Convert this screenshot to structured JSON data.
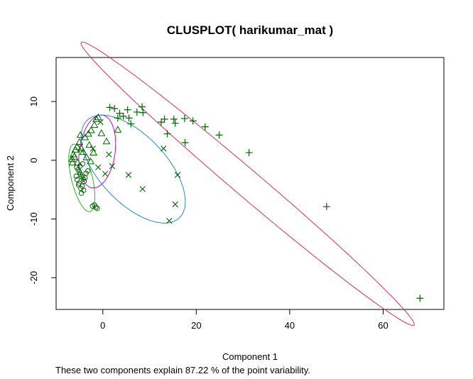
{
  "chart_data": {
    "type": "scatter",
    "title": "CLUSPLOT( harikumar_mat )",
    "xlabel": "Component 1",
    "ylabel": "Component 2",
    "subtitle": "These two components explain 87.22 % of the point variability.",
    "xlim": [
      -10,
      73
    ],
    "ylim": [
      -25.4,
      17.5
    ],
    "xticks": [
      0,
      20,
      40,
      60
    ],
    "yticks": [
      -20,
      -10,
      0,
      10
    ],
    "grid": false,
    "point_color": "#006400",
    "clusters": [
      {
        "marker": "circle",
        "ellipse_color": "#22bb22",
        "ellipse": {
          "center": [
            -4.5,
            -3.0
          ],
          "semi_major": 6.0,
          "semi_minor": 2.2,
          "angle_deg": -72
        },
        "points": [
          [
            -5.6,
            -1.2
          ],
          [
            -5.3,
            -1.6
          ],
          [
            -5.0,
            -2.0
          ],
          [
            -4.8,
            -2.4
          ],
          [
            -4.5,
            -2.8
          ],
          [
            -4.2,
            -3.2
          ],
          [
            -4.0,
            -3.6
          ],
          [
            -5.1,
            -3.9
          ],
          [
            -5.5,
            -3.3
          ],
          [
            -4.4,
            -4.4
          ],
          [
            -4.7,
            -4.8
          ],
          [
            -4.1,
            -5.1
          ],
          [
            -4.6,
            -5.6
          ],
          [
            -5.2,
            -4.2
          ],
          [
            -3.8,
            -3.0
          ],
          [
            -3.6,
            -2.2
          ],
          [
            -4.9,
            -1.0
          ],
          [
            -5.7,
            -2.7
          ],
          [
            -2.2,
            -7.8
          ],
          [
            -1.8,
            -7.6
          ],
          [
            -1.5,
            -8.0
          ],
          [
            -1.2,
            -8.2
          ],
          [
            -3.2,
            -1.8
          ],
          [
            -4.3,
            -0.6
          ]
        ]
      },
      {
        "marker": "triangle",
        "ellipse_color": "#cc00cc",
        "ellipse": {
          "center": [
            -1.2,
            1.5
          ],
          "semi_major": 6.3,
          "semi_minor": 3.8,
          "angle_deg": 78
        },
        "points": [
          [
            -6.6,
            0.2
          ],
          [
            -6.3,
            1.0
          ],
          [
            -5.9,
            1.8
          ],
          [
            -6.1,
            0.6
          ],
          [
            -5.5,
            2.3
          ],
          [
            -5.0,
            3.1
          ],
          [
            -4.6,
            2.0
          ],
          [
            -4.2,
            1.4
          ],
          [
            -3.8,
            3.9
          ],
          [
            -3.1,
            4.5
          ],
          [
            -2.5,
            5.1
          ],
          [
            -1.8,
            6.0
          ],
          [
            -1.4,
            7.0
          ],
          [
            -1.0,
            7.3
          ],
          [
            -0.3,
            4.6
          ],
          [
            0.8,
            3.2
          ],
          [
            -2.9,
            2.6
          ],
          [
            -2.0,
            1.3
          ],
          [
            -3.5,
            0.5
          ],
          [
            3.2,
            5.2
          ],
          [
            -4.8,
            4.3
          ],
          [
            -5.4,
            -0.4
          ],
          [
            -2.6,
            -0.2
          ],
          [
            -6.5,
            -0.4
          ]
        ]
      },
      {
        "marker": "cross",
        "ellipse_color": "#2e86c1",
        "ellipse": {
          "center": [
            6.5,
            -1.5
          ],
          "semi_major": 13.0,
          "semi_minor": 6.3,
          "angle_deg": -36
        },
        "points": [
          [
            -0.5,
            6.5
          ],
          [
            2.0,
            -1.0
          ],
          [
            -2.1,
            2.0
          ],
          [
            0.5,
            -2.3
          ],
          [
            5.5,
            -2.5
          ],
          [
            8.5,
            -4.9
          ],
          [
            13.0,
            2.0
          ],
          [
            16.0,
            -2.5
          ],
          [
            15.5,
            -7.5
          ],
          [
            14.2,
            -10.3
          ],
          [
            -1.0,
            -1.2
          ],
          [
            1.3,
            1.0
          ]
        ]
      },
      {
        "marker": "plus",
        "ellipse_color": "#cc3355",
        "ellipse": {
          "center": [
            31.0,
            -4.0
          ],
          "semi_major": 43.0,
          "semi_minor": 2.5,
          "angle_deg": -34
        },
        "points": [
          [
            1.5,
            9.0
          ],
          [
            2.5,
            8.8
          ],
          [
            3.6,
            8.0
          ],
          [
            4.4,
            7.5
          ],
          [
            5.3,
            8.6
          ],
          [
            5.6,
            7.2
          ],
          [
            6.0,
            6.2
          ],
          [
            7.3,
            8.2
          ],
          [
            8.6,
            8.1
          ],
          [
            8.4,
            9.1
          ],
          [
            3.2,
            7.2
          ],
          [
            12.5,
            6.5
          ],
          [
            13.2,
            7.0
          ],
          [
            13.8,
            4.5
          ],
          [
            15.2,
            7.0
          ],
          [
            15.5,
            6.3
          ],
          [
            17.5,
            7.1
          ],
          [
            19.3,
            6.7
          ],
          [
            21.9,
            5.7
          ],
          [
            24.9,
            4.3
          ],
          [
            17.6,
            3.0
          ],
          [
            31.3,
            1.3
          ],
          [
            47.9,
            -7.9
          ],
          [
            67.9,
            -23.5
          ]
        ]
      }
    ]
  }
}
